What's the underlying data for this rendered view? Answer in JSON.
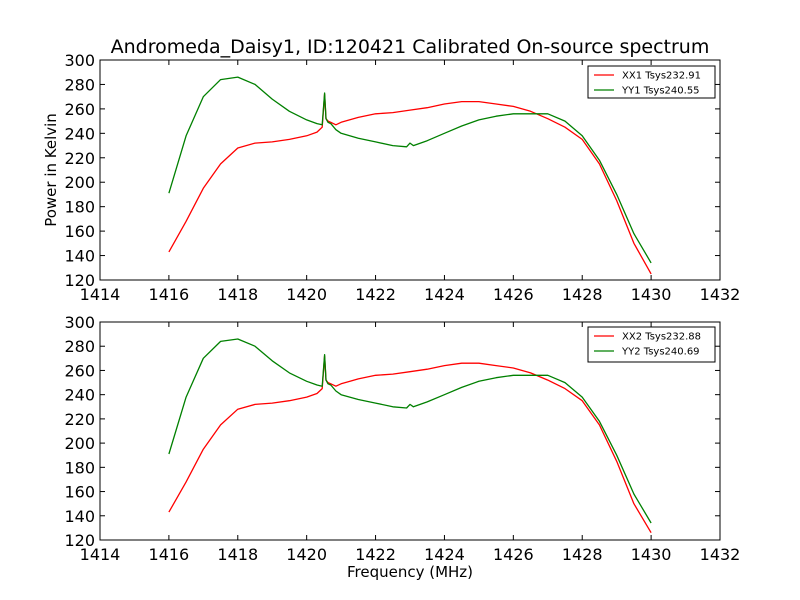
{
  "chart_data": {
    "title": "Andromeda_Daisy1, ID:120421 Calibrated On-source spectrum",
    "xlabel": "Frequency (MHz)",
    "ylabel": "Power in Kelvin",
    "panels": [
      {
        "type": "line",
        "xlim": [
          1414,
          1432
        ],
        "ylim": [
          120,
          300
        ],
        "xticks": [
          1414,
          1416,
          1418,
          1420,
          1422,
          1424,
          1426,
          1428,
          1430,
          1432
        ],
        "yticks": [
          120,
          140,
          160,
          180,
          200,
          220,
          240,
          260,
          280,
          300
        ],
        "legend_position": "top-right",
        "series": [
          {
            "name": "XX1 Tsys232.91",
            "color": "#ff0000",
            "x": [
              1416.0,
              1416.5,
              1417.0,
              1417.5,
              1418.0,
              1418.5,
              1419.0,
              1419.5,
              1420.0,
              1420.3,
              1420.45,
              1420.52,
              1420.56,
              1420.62,
              1420.7,
              1420.85,
              1421.0,
              1421.5,
              1422.0,
              1422.5,
              1423.0,
              1423.5,
              1424.0,
              1424.5,
              1425.0,
              1425.5,
              1426.0,
              1426.5,
              1427.0,
              1427.5,
              1428.0,
              1428.5,
              1429.0,
              1429.5,
              1430.0
            ],
            "y": [
              143,
              168,
              195,
              215,
              228,
              232,
              233,
              235,
              238,
              241,
              245,
              272,
              252,
              250,
              249,
              247,
              249,
              253,
              256,
              257,
              259,
              261,
              264,
              266,
              266,
              264,
              262,
              258,
              252,
              245,
              235,
              215,
              185,
              150,
              125
            ]
          },
          {
            "name": "YY1 Tsys240.55",
            "color": "#008000",
            "x": [
              1416.0,
              1416.5,
              1417.0,
              1417.5,
              1418.0,
              1418.5,
              1419.0,
              1419.5,
              1420.0,
              1420.3,
              1420.45,
              1420.52,
              1420.56,
              1420.62,
              1420.7,
              1420.85,
              1421.0,
              1421.5,
              1422.0,
              1422.5,
              1422.9,
              1423.0,
              1423.1,
              1423.5,
              1424.0,
              1424.5,
              1425.0,
              1425.5,
              1426.0,
              1426.5,
              1427.0,
              1427.5,
              1428.0,
              1428.5,
              1429.0,
              1429.5,
              1430.0
            ],
            "y": [
              191,
              238,
              270,
              284,
              286,
              280,
              268,
              258,
              251,
              248,
              247,
              273,
              252,
              249,
              248,
              243,
              240,
              236,
              233,
              230,
              229,
              232,
              230,
              234,
              240,
              246,
              251,
              254,
              256,
              256,
              256,
              250,
              238,
              218,
              190,
              158,
              134
            ]
          }
        ]
      },
      {
        "type": "line",
        "xlim": [
          1414,
          1432
        ],
        "ylim": [
          120,
          300
        ],
        "xticks": [
          1414,
          1416,
          1418,
          1420,
          1422,
          1424,
          1426,
          1428,
          1430,
          1432
        ],
        "yticks": [
          120,
          140,
          160,
          180,
          200,
          220,
          240,
          260,
          280,
          300
        ],
        "legend_position": "top-right",
        "series": [
          {
            "name": "XX2 Tsys232.88",
            "color": "#ff0000",
            "x": [
              1416.0,
              1416.5,
              1417.0,
              1417.5,
              1418.0,
              1418.5,
              1419.0,
              1419.5,
              1420.0,
              1420.3,
              1420.45,
              1420.52,
              1420.56,
              1420.62,
              1420.7,
              1420.85,
              1421.0,
              1421.5,
              1422.0,
              1422.5,
              1423.0,
              1423.5,
              1424.0,
              1424.5,
              1425.0,
              1425.5,
              1426.0,
              1426.5,
              1427.0,
              1427.5,
              1428.0,
              1428.5,
              1429.0,
              1429.5,
              1430.0
            ],
            "y": [
              143,
              168,
              195,
              215,
              228,
              232,
              233,
              235,
              238,
              241,
              245,
              272,
              252,
              250,
              249,
              247,
              249,
              253,
              256,
              257,
              259,
              261,
              264,
              266,
              266,
              264,
              262,
              258,
              252,
              245,
              235,
              215,
              185,
              150,
              126
            ]
          },
          {
            "name": "YY2 Tsys240.69",
            "color": "#008000",
            "x": [
              1416.0,
              1416.5,
              1417.0,
              1417.5,
              1418.0,
              1418.5,
              1419.0,
              1419.5,
              1420.0,
              1420.3,
              1420.45,
              1420.52,
              1420.56,
              1420.62,
              1420.7,
              1420.85,
              1421.0,
              1421.5,
              1422.0,
              1422.5,
              1422.9,
              1423.0,
              1423.1,
              1423.5,
              1424.0,
              1424.5,
              1425.0,
              1425.5,
              1426.0,
              1426.5,
              1427.0,
              1427.5,
              1428.0,
              1428.5,
              1429.0,
              1429.5,
              1430.0
            ],
            "y": [
              191,
              238,
              270,
              284,
              286,
              280,
              268,
              258,
              251,
              248,
              247,
              273,
              252,
              249,
              248,
              243,
              240,
              236,
              233,
              230,
              229,
              232,
              230,
              234,
              240,
              246,
              251,
              254,
              256,
              256,
              256,
              250,
              238,
              218,
              190,
              158,
              134
            ]
          }
        ]
      }
    ]
  }
}
